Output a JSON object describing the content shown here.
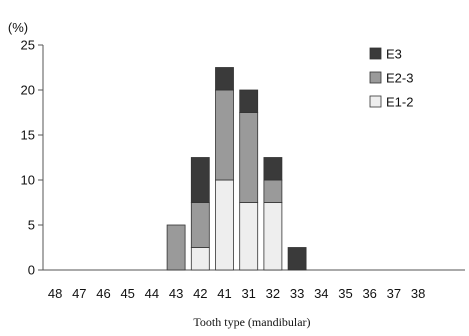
{
  "chart_data": {
    "type": "bar",
    "stacked": true,
    "y_unit": "(%)",
    "xlabel": "Tooth type (mandibular)",
    "ylabel": "",
    "ylim": [
      0,
      25
    ],
    "yticks": [
      0,
      5,
      10,
      15,
      20,
      25
    ],
    "categories": [
      "48",
      "47",
      "46",
      "45",
      "44",
      "43",
      "42",
      "41",
      "31",
      "32",
      "33",
      "34",
      "35",
      "36",
      "37",
      "38"
    ],
    "series": [
      {
        "name": "E1-2",
        "color": "#eeeeee",
        "values": [
          0,
          0,
          0,
          0,
          0,
          0,
          2.5,
          10,
          7.5,
          7.5,
          0,
          0,
          0,
          0,
          0,
          0
        ]
      },
      {
        "name": "E2-3",
        "color": "#9a9a9a",
        "values": [
          0,
          0,
          0,
          0,
          0,
          5,
          5,
          10,
          10,
          2.5,
          0,
          0,
          0,
          0,
          0,
          0
        ]
      },
      {
        "name": "E3",
        "color": "#3a3a3a",
        "values": [
          0,
          0,
          0,
          0,
          0,
          0,
          5,
          2.5,
          2.5,
          2.5,
          2.5,
          0,
          0,
          0,
          0,
          0
        ]
      }
    ],
    "legend": {
      "position": "top-right",
      "order": [
        "E3",
        "E2-3",
        "E1-2"
      ]
    },
    "grid": false
  }
}
